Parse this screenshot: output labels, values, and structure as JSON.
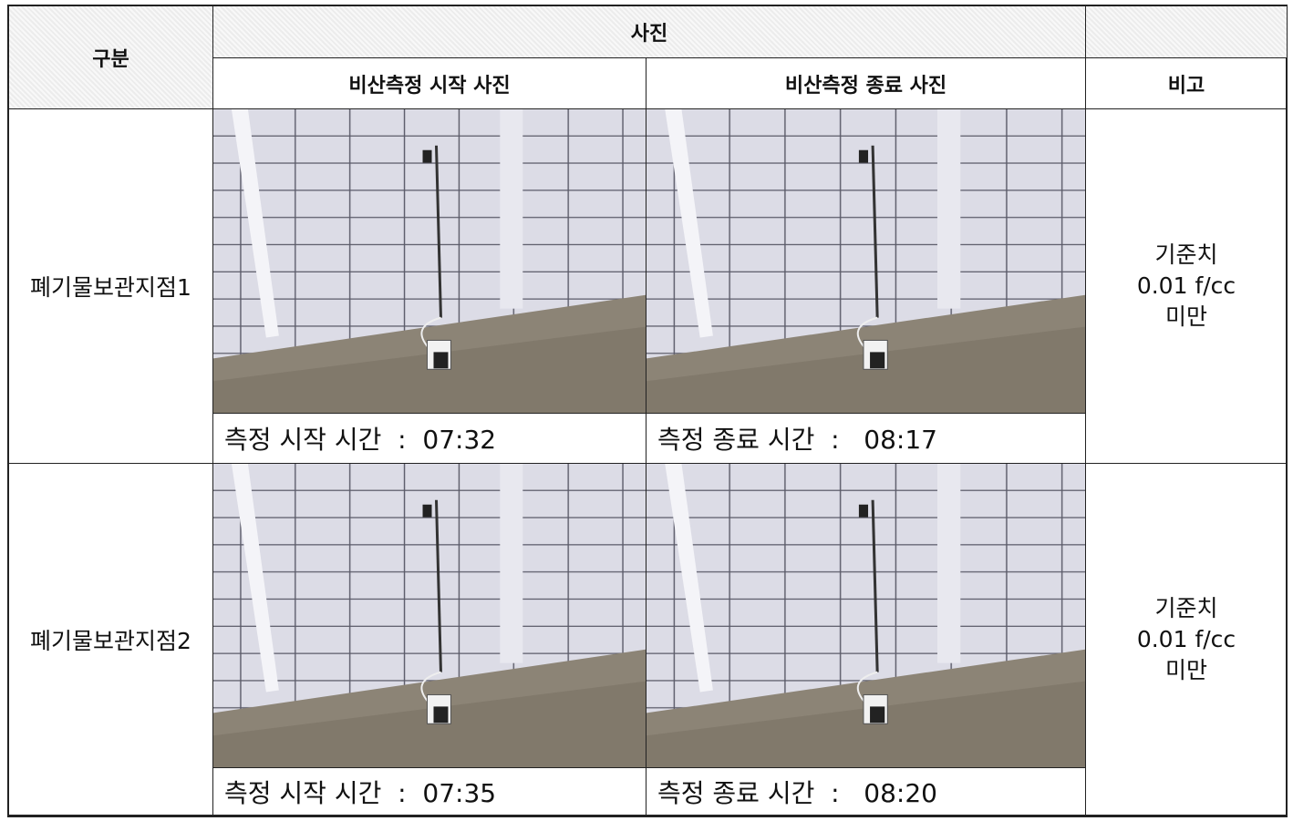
{
  "table": {
    "header": {
      "category": "구분",
      "photos": "사진",
      "start_photo": "비산측정 시작 사진",
      "end_photo": "비산측정 종료 사진",
      "remarks": "비고"
    },
    "rows": [
      {
        "label": "폐기물보관지점1",
        "start_caption": "측정 시작 시간  :  07:32",
        "end_caption": "측정 종료 시간  :   08:17",
        "remarks": [
          "기준치",
          "0.01 f/cc",
          "미만"
        ]
      },
      {
        "label": "폐기물보관지점2",
        "start_caption": "측정 시작 시간  :  07:35",
        "end_caption": "측정 종료 시간  :   08:20",
        "remarks": [
          "기준치",
          "0.01 f/cc",
          "미만"
        ]
      }
    ]
  }
}
